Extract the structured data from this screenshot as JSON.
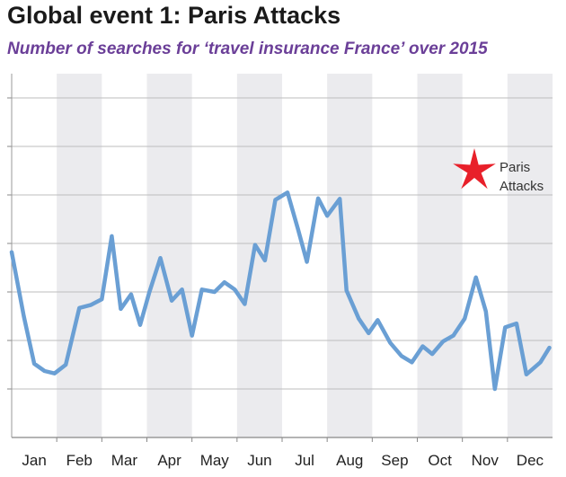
{
  "header": {
    "title": "Global event 1: Paris Attacks",
    "subtitle": "Number of searches for ‘travel insurance France’ over 2015"
  },
  "chart_data": {
    "type": "line",
    "title": "Global event 1: Paris Attacks",
    "subtitle": "Number of searches for ‘travel insurance France’ over 2015",
    "xlabel": "",
    "ylabel": "",
    "categories": [
      "Jan",
      "Feb",
      "Mar",
      "Apr",
      "May",
      "Jun",
      "Jul",
      "Aug",
      "Sep",
      "Oct",
      "Nov",
      "Dec"
    ],
    "xlim": [
      0,
      12
    ],
    "ylim": [
      0,
      7.5
    ],
    "y_ticks": [
      0,
      1,
      2,
      3,
      4,
      5,
      6,
      7
    ],
    "y_tick_labels_shown": false,
    "grid": "horizontal",
    "alternating_month_bands": true,
    "band_color": "#ebebee",
    "line_color": "#6a9fd4",
    "series": [
      {
        "values": [
          [
            0.0,
            3.82
          ],
          [
            0.27,
            2.5
          ],
          [
            0.5,
            1.52
          ],
          [
            0.73,
            1.37
          ],
          [
            0.95,
            1.32
          ],
          [
            1.2,
            1.5
          ],
          [
            1.5,
            2.67
          ],
          [
            1.75,
            2.73
          ],
          [
            2.0,
            2.85
          ],
          [
            2.22,
            4.15
          ],
          [
            2.42,
            2.65
          ],
          [
            2.65,
            2.95
          ],
          [
            2.85,
            2.32
          ],
          [
            3.05,
            2.98
          ],
          [
            3.3,
            3.7
          ],
          [
            3.55,
            2.82
          ],
          [
            3.78,
            3.05
          ],
          [
            4.0,
            2.1
          ],
          [
            4.22,
            3.05
          ],
          [
            4.5,
            3.0
          ],
          [
            4.72,
            3.2
          ],
          [
            4.95,
            3.05
          ],
          [
            5.17,
            2.75
          ],
          [
            5.4,
            3.97
          ],
          [
            5.62,
            3.65
          ],
          [
            5.85,
            4.9
          ],
          [
            6.12,
            5.05
          ],
          [
            6.35,
            4.3
          ],
          [
            6.55,
            3.62
          ],
          [
            6.8,
            4.93
          ],
          [
            7.0,
            4.57
          ],
          [
            7.28,
            4.92
          ],
          [
            7.43,
            3.03
          ],
          [
            7.7,
            2.45
          ],
          [
            7.92,
            2.15
          ],
          [
            8.12,
            2.42
          ],
          [
            8.4,
            1.95
          ],
          [
            8.65,
            1.68
          ],
          [
            8.88,
            1.55
          ],
          [
            9.12,
            1.88
          ],
          [
            9.33,
            1.72
          ],
          [
            9.57,
            1.98
          ],
          [
            9.8,
            2.1
          ],
          [
            10.05,
            2.45
          ],
          [
            10.3,
            3.3
          ],
          [
            10.52,
            2.6
          ],
          [
            10.72,
            1.0
          ],
          [
            10.95,
            2.27
          ],
          [
            11.2,
            2.35
          ],
          [
            11.42,
            1.3
          ],
          [
            11.73,
            1.55
          ],
          [
            11.93,
            1.85
          ]
        ]
      }
    ],
    "annotations": [
      {
        "label_lines": [
          "Paris",
          "Attacks"
        ],
        "marker": "red-star-icon",
        "marker_color": "#e8202a",
        "at": "Nov"
      }
    ]
  }
}
